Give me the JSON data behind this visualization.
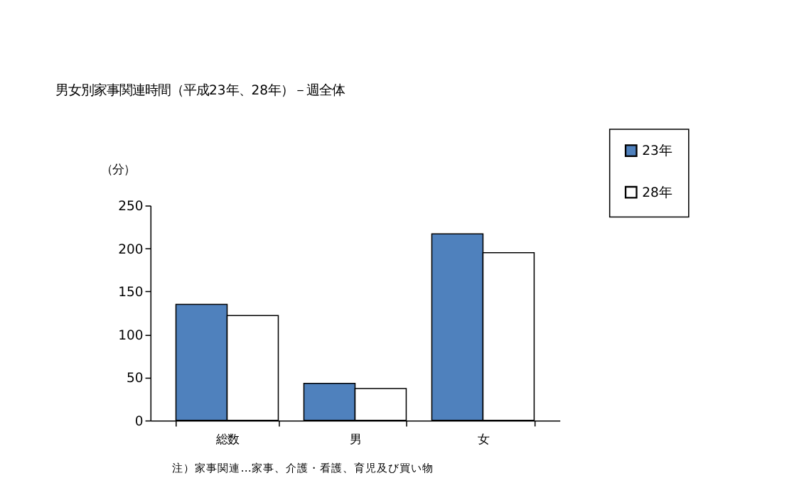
{
  "chart_data": {
    "type": "bar",
    "title": "男女別家事関連時間（平成23年、28年）－週全体",
    "ylabel": "（分）",
    "categories": [
      "総数",
      "男",
      "女"
    ],
    "series": [
      {
        "name": "23年",
        "color": "#4f81bd",
        "values": [
          135,
          43,
          217
        ]
      },
      {
        "name": "28年",
        "color": "#ffffff",
        "values": [
          122,
          37,
          195
        ]
      }
    ],
    "ylim": [
      0,
      250
    ],
    "yticks": [
      0,
      50,
      100,
      150,
      200,
      250
    ],
    "grid": false,
    "legend": "top right",
    "annotations": [
      "注）家事関連…家事、介護・看護、育児及び買い物"
    ]
  }
}
